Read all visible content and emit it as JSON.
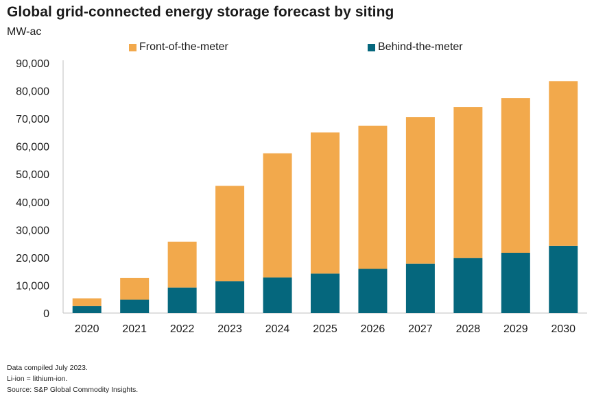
{
  "chart_data": {
    "type": "bar",
    "stacked": true,
    "title": "Global grid-connected energy storage forecast by siting",
    "ylabel": "MW-ac",
    "xlabel": "",
    "ylim": [
      0,
      90000
    ],
    "yticks": [
      "0",
      "10,000",
      "20,000",
      "30,000",
      "40,000",
      "50,000",
      "60,000",
      "70,000",
      "80,000",
      "90,000"
    ],
    "categories": [
      "2020",
      "2021",
      "2022",
      "2023",
      "2024",
      "2025",
      "2026",
      "2027",
      "2028",
      "2029",
      "2030"
    ],
    "series": [
      {
        "name": "Behind-the-meter",
        "color": "#05677d",
        "values": [
          2500,
          4800,
          9200,
          11500,
          12800,
          14200,
          15900,
          17800,
          19800,
          21700,
          24200
        ]
      },
      {
        "name": "Front-of-the-meter",
        "color": "#f2a94c",
        "values": [
          2800,
          7800,
          16500,
          34300,
          44700,
          50800,
          51500,
          52700,
          54400,
          55700,
          59300
        ]
      }
    ],
    "legend": {
      "position": "top",
      "order": [
        "Front-of-the-meter",
        "Behind-the-meter"
      ]
    },
    "grid": false
  },
  "notes": [
    "Data compiled July 2023.",
    "Li-ion = lithium-ion.",
    "Source: S&P Global Commodity Insights."
  ]
}
